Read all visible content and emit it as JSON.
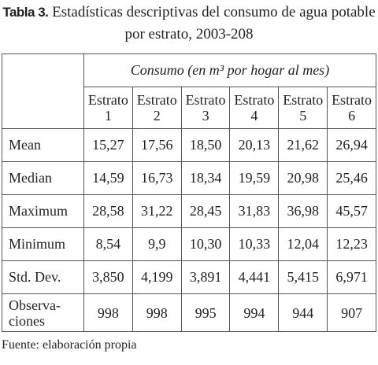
{
  "header": {
    "label": "Tabla 3.",
    "title": "Estadísticas descriptivas del consumo de agua potable por estrato, 2003-208"
  },
  "table": {
    "group_header": "Consumo (en m³ por hogar al mes)",
    "columns": [
      "Estrato\n1",
      "Estrato\n2",
      "Estrato\n3",
      "Estrato\n4",
      "Estrato\n5",
      "Estrato\n6"
    ],
    "rows": [
      [
        "Mean",
        "15,27",
        "17,56",
        "18,50",
        "20,13",
        "21,62",
        "26,94"
      ],
      [
        "Median",
        "14,59",
        "16,73",
        "18,34",
        "19,59",
        "20,98",
        "25,46"
      ],
      [
        "Maximum",
        "28,58",
        "31,22",
        "28,45",
        "31,83",
        "36,98",
        "45,57"
      ],
      [
        "Minimum",
        "8,54",
        "9,9",
        "10,30",
        "10,33",
        "12,04",
        "12,23"
      ],
      [
        "Std. Dev.",
        "3,850",
        "4,199",
        "3,891",
        "4,441",
        "5,415",
        "6,971"
      ],
      [
        "Observa-\nciones",
        "998",
        "998",
        "995",
        "994",
        "944",
        "907"
      ]
    ]
  },
  "footer": {
    "source": "Fuente: elaboración propia"
  }
}
